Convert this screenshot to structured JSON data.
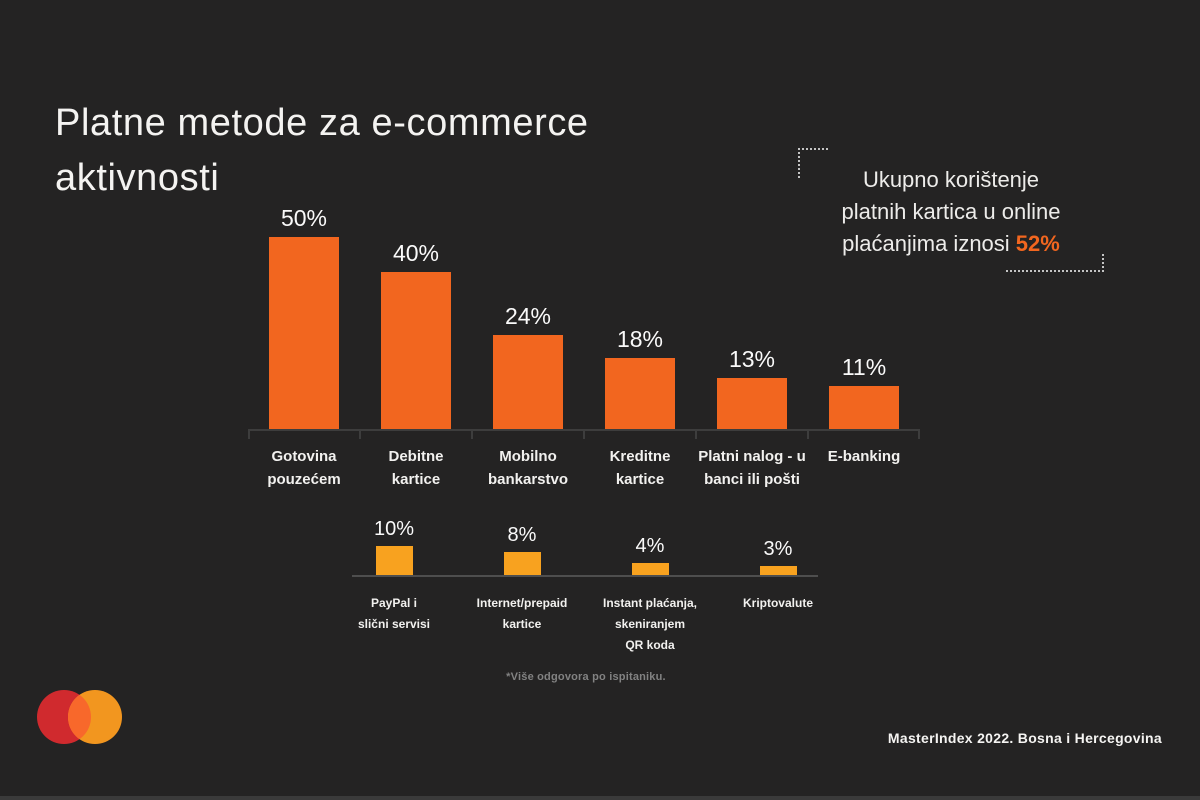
{
  "title": {
    "line1": "Platne metode za e-commerce",
    "line2": "aktivnosti"
  },
  "callout": {
    "line1": "Ukupno korištenje",
    "line2": "platnih kartica u online",
    "line3_prefix": "plaćanjima iznosi ",
    "highlight": "52%",
    "highlight_color": "#F2661F"
  },
  "chart_data": [
    {
      "type": "bar",
      "title": "Platne metode za e-commerce aktivnosti",
      "unit": "percent",
      "categories": [
        "Gotovina pouzećem",
        "Debitne kartice",
        "Mobilno bankarstvo",
        "Kreditne kartice",
        "Platni nalog - u banci ili pošti",
        "E-banking"
      ],
      "category_lines": [
        [
          "Gotovina",
          "pouzećem"
        ],
        [
          "Debitne",
          "kartice"
        ],
        [
          "Mobilno",
          "bankarstvo"
        ],
        [
          "Kreditne",
          "kartice"
        ],
        [
          "Platni nalog - u",
          "banci ili pošti"
        ],
        [
          "E-banking"
        ]
      ],
      "values": [
        50,
        40,
        24,
        18,
        13,
        11
      ],
      "labels": [
        "50%",
        "40%",
        "24%",
        "18%",
        "13%",
        "11%"
      ],
      "bar_color": "#F2661F",
      "ylim": [
        0,
        50
      ],
      "grid": false,
      "legend": false
    },
    {
      "type": "bar",
      "title": "",
      "unit": "percent",
      "categories": [
        "PayPal i slični servisi",
        "Internet/prepaid kartice",
        "Instant plaćanja, skeniranjem QR koda",
        "Kriptovalute"
      ],
      "category_lines": [
        [
          "PayPal i",
          "slični servisi"
        ],
        [
          "Internet/prepaid",
          "kartice"
        ],
        [
          "Instant plaćanja,",
          "skeniranjem",
          "QR koda"
        ],
        [
          "Kriptovalute"
        ]
      ],
      "values": [
        10,
        8,
        4,
        3
      ],
      "labels": [
        "10%",
        "8%",
        "4%",
        "3%"
      ],
      "bar_color": "#F8A21F",
      "ylim": [
        0,
        10
      ],
      "grid": false,
      "legend": false
    }
  ],
  "footnote": "*Više odgovora po ispitaniku.",
  "footer": {
    "source": "MasterIndex 2022. Bosna i Hercegovina"
  },
  "logo": {
    "name": "mastercard-logo",
    "left_circle_color": "#D02A2E",
    "right_circle_color": "#F2961F",
    "overlap_color": "#F8682B"
  },
  "colors": {
    "background": "#242323",
    "axis": "#3D3D3D",
    "text": "#F5F4F2"
  }
}
